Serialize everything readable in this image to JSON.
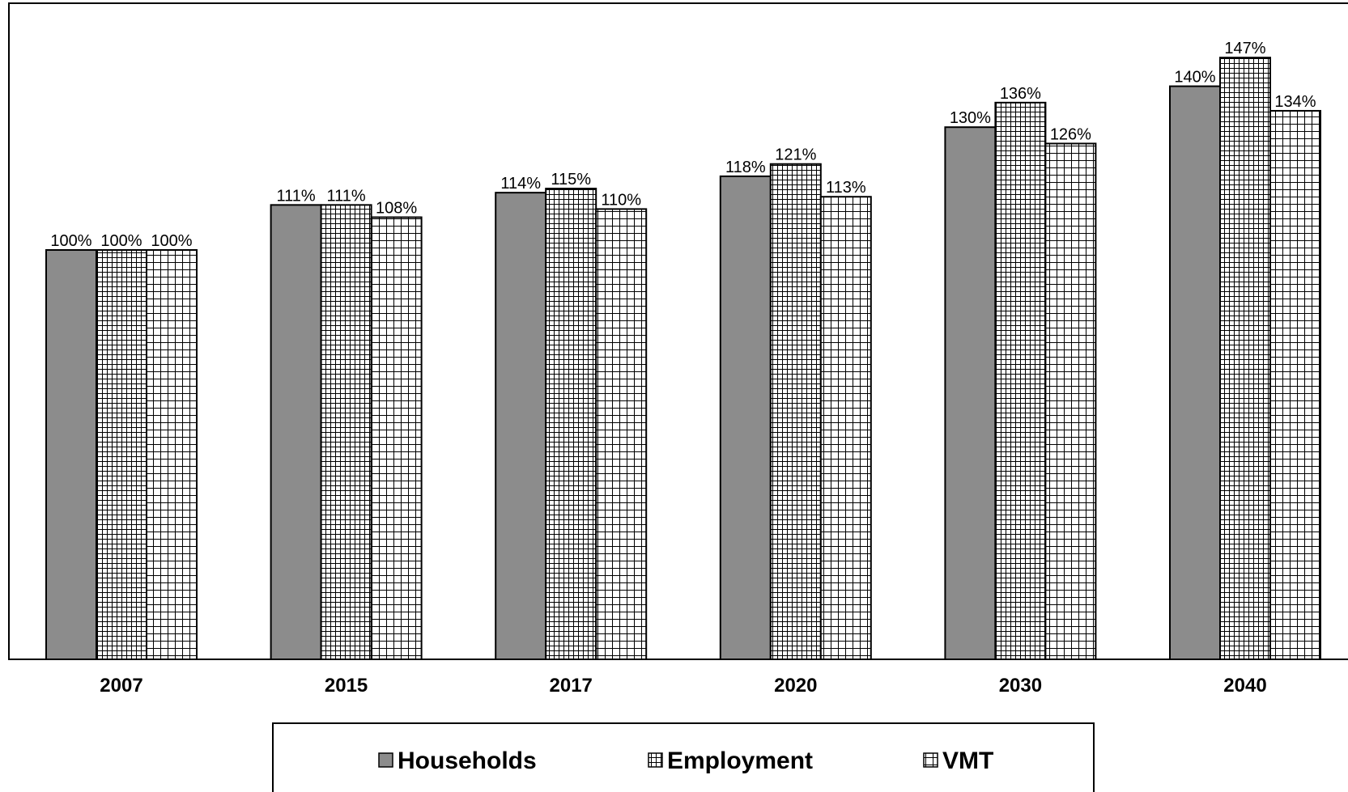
{
  "chart_data": {
    "type": "bar",
    "categories": [
      "2007",
      "2015",
      "2017",
      "2020",
      "2030",
      "2040"
    ],
    "series": [
      {
        "name": "Households",
        "values": [
          100,
          111,
          114,
          118,
          130,
          140
        ],
        "labels": [
          "100%",
          "111%",
          "114%",
          "118%",
          "130%",
          "140%"
        ],
        "pattern": "solid-gray"
      },
      {
        "name": "Employment",
        "values": [
          100,
          111,
          115,
          121,
          136,
          147
        ],
        "labels": [
          "100%",
          "111%",
          "115%",
          "121%",
          "136%",
          "147%"
        ],
        "pattern": "fine-grid"
      },
      {
        "name": "VMT",
        "values": [
          100,
          108,
          110,
          113,
          126,
          134
        ],
        "labels": [
          "100%",
          "108%",
          "110%",
          "113%",
          "126%",
          "134%"
        ],
        "pattern": "coarse-grid"
      }
    ],
    "ylim": [
      0,
      160
    ],
    "y_unit": "%",
    "grid": false,
    "legend_position": "bottom",
    "colors": {
      "households": "#8c8c8c",
      "grid_lines": "#000000",
      "background": "#ffffff"
    }
  }
}
